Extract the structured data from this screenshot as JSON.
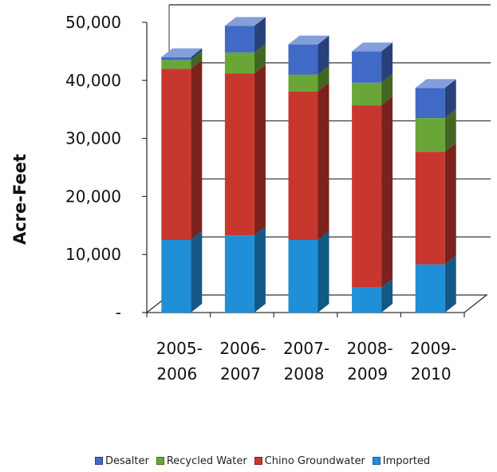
{
  "chart_data": {
    "type": "bar",
    "stacked": true,
    "three_d": true,
    "title": "",
    "ylabel": "Acre-Feet",
    "xlabel": "",
    "ylim": [
      0,
      50000
    ],
    "yticks": [
      0,
      10000,
      20000,
      30000,
      40000,
      50000
    ],
    "ytick_labels": [
      "-",
      "10,000",
      "20,000",
      "30,000",
      "40,000",
      "50,000"
    ],
    "grid": true,
    "legend_position": "bottom",
    "categories": [
      {
        "line1": "2005-",
        "line2": "2006"
      },
      {
        "line1": "2006-",
        "line2": "2007"
      },
      {
        "line1": "2007-",
        "line2": "2008"
      },
      {
        "line1": "2008-",
        "line2": "2009"
      },
      {
        "line1": "2009-",
        "line2": "2010"
      }
    ],
    "series": [
      {
        "name": "Imported",
        "color": "#1f8fd8",
        "values": [
          12500,
          13300,
          12500,
          4300,
          8300
        ]
      },
      {
        "name": "Chino Groundwater",
        "color": "#c8372d",
        "values": [
          29500,
          27900,
          25600,
          31400,
          19400
        ]
      },
      {
        "name": "Recycled Water",
        "color": "#6aa637",
        "values": [
          1500,
          3600,
          2900,
          3900,
          5800
        ]
      },
      {
        "name": "Desalter",
        "color": "#4169c6",
        "values": [
          500,
          4600,
          5200,
          5400,
          5200
        ]
      }
    ],
    "legend_order": [
      "Desalter",
      "Recycled Water",
      "Chino Groundwater",
      "Imported"
    ]
  }
}
